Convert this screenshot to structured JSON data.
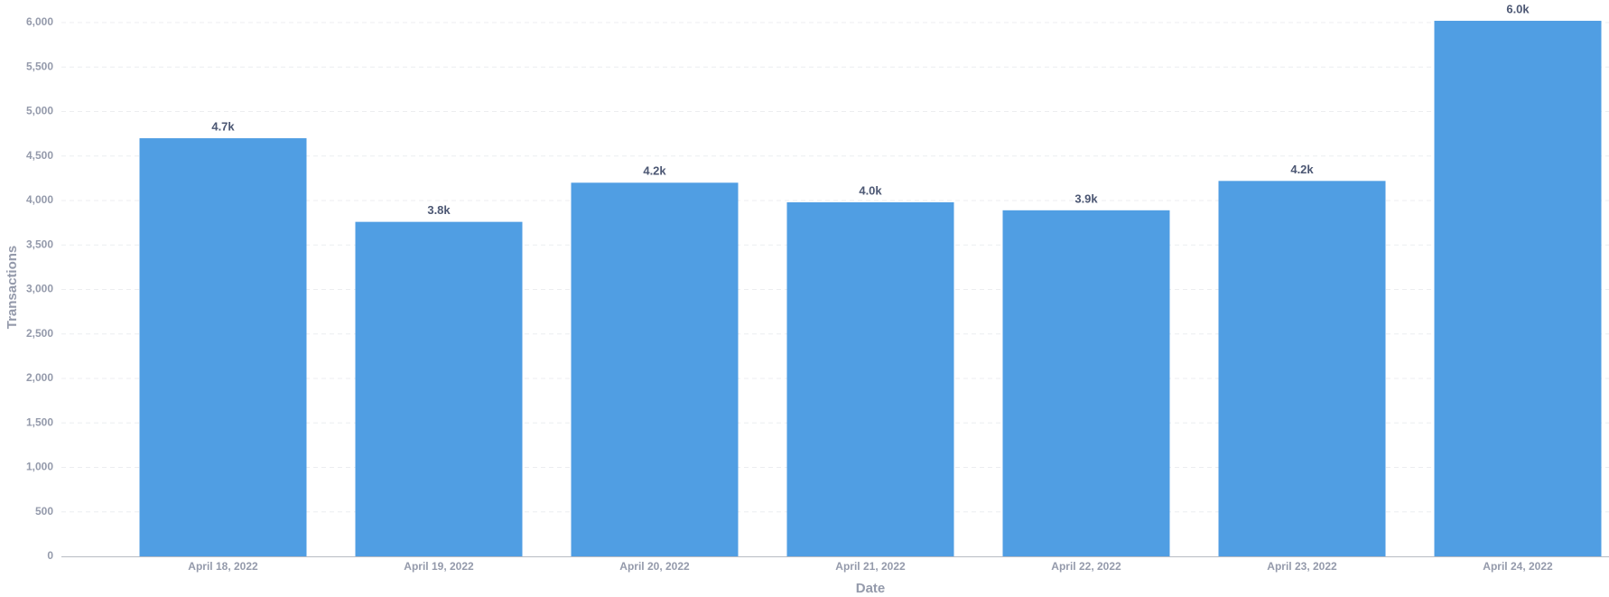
{
  "chart_data": {
    "type": "bar",
    "x_label": "Date",
    "y_label": "Transactions",
    "categories": [
      "April 18, 2022",
      "April 19, 2022",
      "April 20, 2022",
      "April 21, 2022",
      "April 22, 2022",
      "April 23, 2022",
      "April 24, 2022"
    ],
    "values": [
      4700,
      3760,
      4200,
      3980,
      3890,
      4220,
      6020
    ],
    "value_labels": [
      "4.7k",
      "3.8k",
      "4.2k",
      "4.0k",
      "3.9k",
      "4.2k",
      "6.0k"
    ],
    "color": "#509ee3",
    "ylim": [
      0,
      6000
    ],
    "yticks": [
      0,
      500,
      {
        "value": 1000,
        "label": "1,000"
      },
      {
        "value": 1500,
        "label": "1,500"
      },
      {
        "value": 2000,
        "label": "2,000"
      },
      {
        "value": 2500,
        "label": "2,500"
      },
      {
        "value": 3000,
        "label": "3,000"
      },
      {
        "value": 3500,
        "label": "3,500"
      },
      {
        "value": 4000,
        "label": "4,000"
      },
      {
        "value": 4500,
        "label": "4,500"
      },
      {
        "value": 5000,
        "label": "5,000"
      },
      {
        "value": 5500,
        "label": "5,500"
      },
      {
        "value": 6000,
        "label": "6,000"
      }
    ],
    "grid": true
  }
}
